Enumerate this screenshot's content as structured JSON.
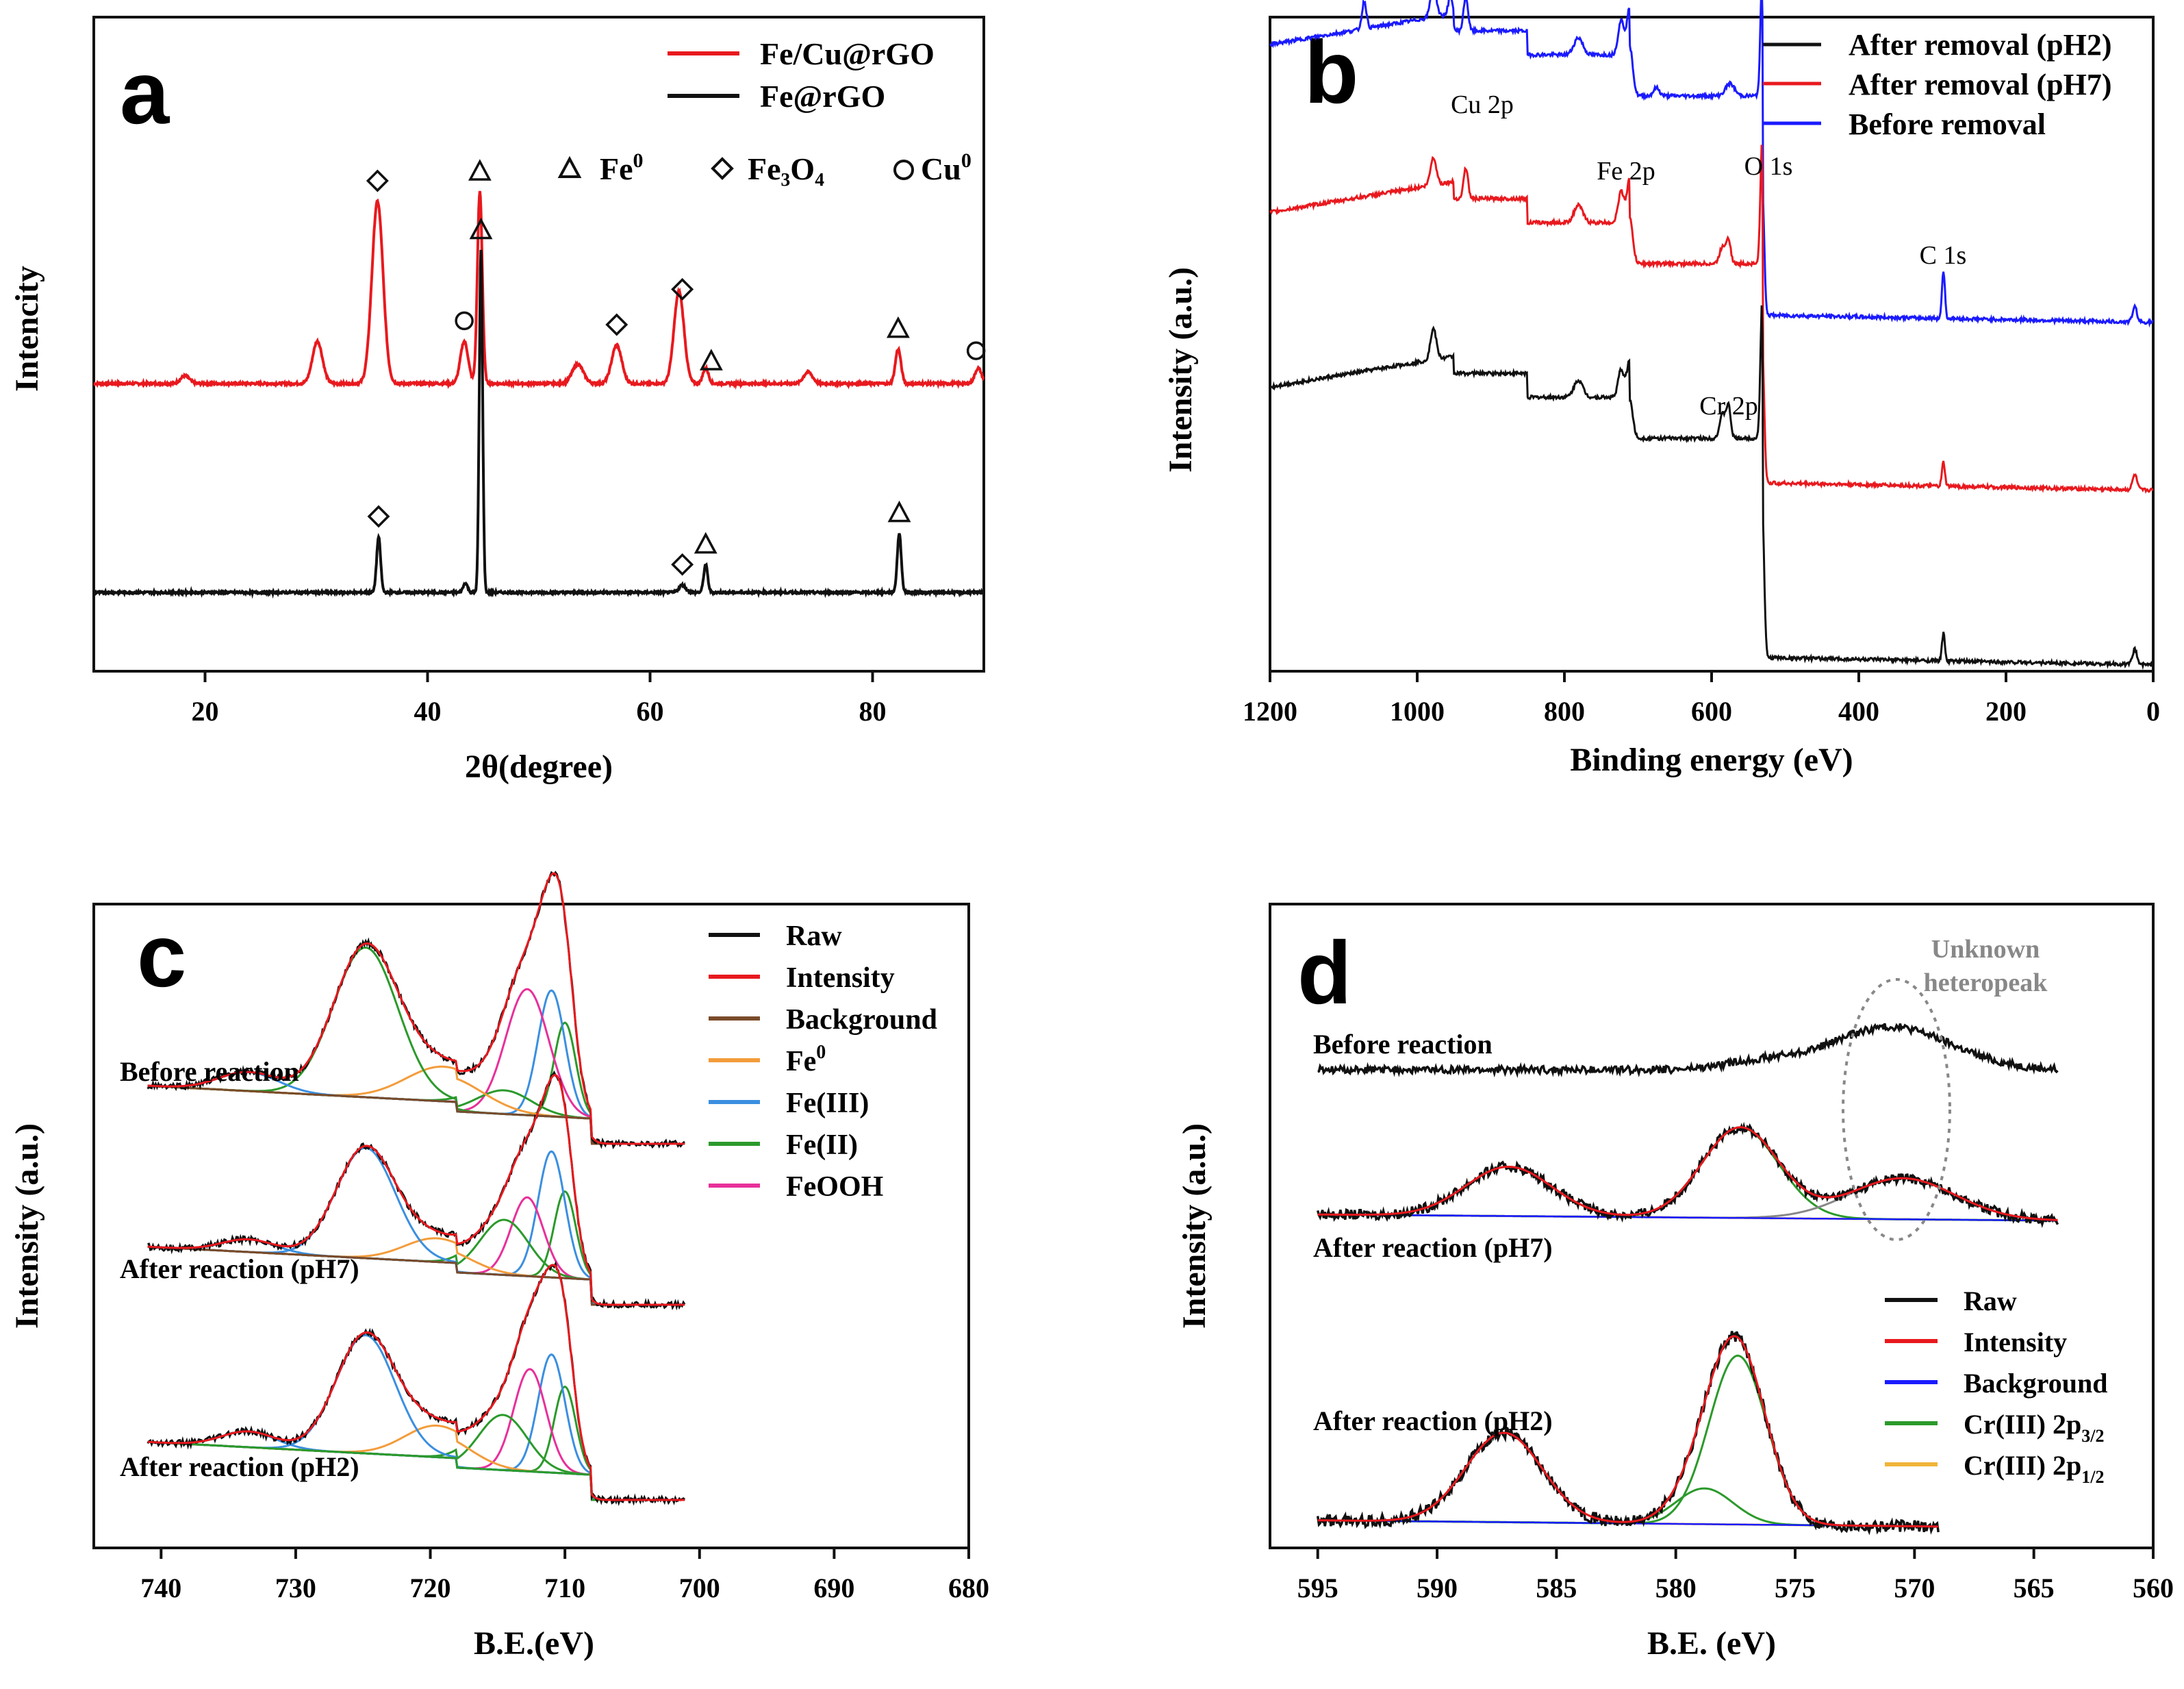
{
  "chart_data": [
    {
      "panel": "a",
      "type": "line",
      "xlabel": "2θ(degree)",
      "ylabel": "Intencity",
      "xlim": [
        10,
        90
      ],
      "xticks": [
        20,
        40,
        60,
        80
      ],
      "legend": {
        "placement": "top-right",
        "entries": [
          {
            "name": "Fe/Cu@rGO",
            "color": "#e8191e"
          },
          {
            "name": "Fe@rGO",
            "color": "#111111"
          }
        ]
      },
      "phase_legend": [
        {
          "marker": "triangle",
          "label": "Fe",
          "sup": "0"
        },
        {
          "marker": "diamond",
          "label": "Fe₃O₄",
          "sup": ""
        },
        {
          "marker": "circle",
          "label": "Cu",
          "sup": "0"
        }
      ],
      "series": [
        {
          "name": "Fe/Cu@rGO",
          "color": "#e8191e",
          "baseline": 0.62,
          "peaks": [
            [
              18.2,
              0.04,
              0.4
            ],
            [
              30.1,
              0.22,
              0.45
            ],
            [
              35.5,
              0.95,
              0.5
            ],
            [
              43.3,
              0.22,
              0.35
            ],
            [
              44.7,
              1.0,
              0.22
            ],
            [
              53.5,
              0.1,
              0.5
            ],
            [
              57.0,
              0.2,
              0.45
            ],
            [
              62.6,
              0.48,
              0.45
            ],
            [
              65.0,
              0.08,
              0.25
            ],
            [
              74.2,
              0.06,
              0.4
            ],
            [
              82.3,
              0.18,
              0.25
            ],
            [
              89.5,
              0.08,
              0.3
            ]
          ],
          "markers": [
            {
              "x": 35.5,
              "type": "diamond"
            },
            {
              "x": 44.7,
              "type": "triangle"
            },
            {
              "x": 43.3,
              "type": "circle"
            },
            {
              "x": 57.0,
              "type": "diamond"
            },
            {
              "x": 62.9,
              "type": "diamond"
            },
            {
              "x": 65.5,
              "type": "triangle"
            },
            {
              "x": 82.3,
              "type": "triangle"
            },
            {
              "x": 89.3,
              "type": "circle"
            }
          ]
        },
        {
          "name": "Fe@rGO",
          "color": "#111111",
          "baseline": 0.0,
          "peaks": [
            [
              35.6,
              0.3,
              0.18
            ],
            [
              43.4,
              0.05,
              0.2
            ],
            [
              44.8,
              1.85,
              0.15
            ],
            [
              62.9,
              0.04,
              0.3
            ],
            [
              65.0,
              0.15,
              0.18
            ],
            [
              82.4,
              0.32,
              0.18
            ]
          ],
          "markers": [
            {
              "x": 35.6,
              "type": "diamond"
            },
            {
              "x": 44.8,
              "type": "triangle"
            },
            {
              "x": 62.9,
              "type": "diamond"
            },
            {
              "x": 65.0,
              "type": "triangle"
            },
            {
              "x": 82.4,
              "type": "triangle"
            }
          ]
        }
      ]
    },
    {
      "panel": "b",
      "type": "line",
      "xlabel": "Binding energy (eV)",
      "ylabel": "Intensity (a.u.)",
      "xlim": [
        1200,
        0
      ],
      "xticks": [
        1200,
        1000,
        800,
        600,
        400,
        200,
        0
      ],
      "legend": {
        "placement": "top-right",
        "entries": [
          {
            "name": "After removal (pH2)",
            "color": "#111111"
          },
          {
            "name": "After removal (pH7)",
            "color": "#e8191e"
          },
          {
            "name": "Before removal",
            "color": "#1a1aff"
          }
        ]
      },
      "annotations": [
        {
          "text": "Cu 2p",
          "x": 935
        },
        {
          "text": "Fe 2p",
          "x": 715
        },
        {
          "text": "O 1s",
          "x": 528
        },
        {
          "text": "Cr 2p",
          "x": 580
        },
        {
          "text": "C 1s",
          "x": 282
        }
      ],
      "series": [
        {
          "name": "Before removal",
          "color": "#1a1aff",
          "offset": 2.0
        },
        {
          "name": "After removal (pH7)",
          "color": "#e8191e",
          "offset": 1.0
        },
        {
          "name": "After removal (pH2)",
          "color": "#111111",
          "offset": 0.0
        }
      ]
    },
    {
      "panel": "c",
      "type": "line",
      "xlabel": "B.E.(eV)",
      "ylabel": "Intensity (a.u.)",
      "xlim": [
        745,
        680
      ],
      "xticks": [
        740,
        730,
        720,
        710,
        700,
        690,
        680
      ],
      "legend": {
        "placement": "top-right",
        "entries": [
          {
            "name": "Raw",
            "color": "#111111"
          },
          {
            "name": "Intensity",
            "color": "#e8191e"
          },
          {
            "name": "Background",
            "color": "#7a4b2a"
          },
          {
            "name": "Fe",
            "sup": "0",
            "color": "#f39c3b"
          },
          {
            "name": "Fe(III)",
            "color": "#3b8fe0"
          },
          {
            "name": "Fe(II)",
            "color": "#2b9a2b"
          },
          {
            "name": "FeOOH",
            "color": "#e8309a"
          }
        ]
      },
      "spectra": [
        {
          "label": "Before reaction",
          "bg_color": "#7a4b2a",
          "components": [
            [
              710.0,
              0.6,
              0.8,
              "#2b9a2b"
            ],
            [
              711.0,
              0.8,
              1.0,
              "#3b8fe0"
            ],
            [
              712.8,
              0.8,
              1.6,
              "#e8309a"
            ],
            [
              714.5,
              0.15,
              2.0,
              "#2b9a2b"
            ],
            [
              719.0,
              0.22,
              2.8,
              "#f39c3b"
            ],
            [
              724.8,
              0.95,
              2.4,
              "#2b9a2b"
            ],
            [
              733.5,
              0.12,
              2.2,
              "#3b8fe0"
            ]
          ]
        },
        {
          "label": "After reaction (pH7)",
          "bg_color": "#7a4b2a",
          "components": [
            [
              710.0,
              0.55,
              0.8,
              "#2b9a2b"
            ],
            [
              711.0,
              0.8,
              1.0,
              "#3b8fe0"
            ],
            [
              712.8,
              0.5,
              1.2,
              "#e8309a"
            ],
            [
              714.5,
              0.35,
              1.8,
              "#2b9a2b"
            ],
            [
              719.5,
              0.15,
              2.4,
              "#f39c3b"
            ],
            [
              724.8,
              0.7,
              2.2,
              "#3b8fe0"
            ],
            [
              733.5,
              0.08,
              2.0,
              "#3b8fe0"
            ]
          ]
        },
        {
          "label": "After reaction (pH2)",
          "bg_color": "#2b9a2b",
          "components": [
            [
              710.0,
              0.55,
              0.8,
              "#2b9a2b"
            ],
            [
              711.0,
              0.75,
              1.0,
              "#3b8fe0"
            ],
            [
              712.6,
              0.65,
              1.2,
              "#e8309a"
            ],
            [
              714.6,
              0.35,
              1.8,
              "#2b9a2b"
            ],
            [
              719.5,
              0.2,
              2.4,
              "#f39c3b"
            ],
            [
              724.8,
              0.75,
              2.2,
              "#3b8fe0"
            ],
            [
              733.5,
              0.1,
              2.0,
              "#3b8fe0"
            ]
          ]
        }
      ]
    },
    {
      "panel": "d",
      "type": "line",
      "xlabel": "B.E. (eV)",
      "ylabel": "Intensity (a.u.)",
      "xlim": [
        597,
        560
      ],
      "xticks": [
        595,
        590,
        585,
        580,
        575,
        570,
        565,
        560
      ],
      "legend": {
        "placement": "bottom-right",
        "entries": [
          {
            "name": "Raw",
            "color": "#111111"
          },
          {
            "name": "Intensity",
            "color": "#e8191e"
          },
          {
            "name": "Background",
            "color": "#1a1aff"
          },
          {
            "name": "Cr(III) 2p",
            "sub": "3/2",
            "color": "#2b9a2b"
          },
          {
            "name": "Cr(III) 2p",
            "sub": "1/2",
            "color": "#f0b43a"
          }
        ]
      },
      "annotation": {
        "text_line1": "Unknown",
        "text_line2": "heteropeak",
        "x": 570.8
      },
      "spectra": [
        {
          "label": "Before reaction",
          "components": [
            [
              571.0,
              0.35,
              2.5,
              "#888888"
            ],
            [
              576.5,
              0.06,
              1.5,
              "#888888"
            ]
          ]
        },
        {
          "label": "After reaction (pH7)",
          "components": [
            [
              587.0,
              0.3,
              1.8,
              "#f0b43a"
            ],
            [
              577.3,
              0.55,
              1.6,
              "#2b9a2b"
            ],
            [
              570.5,
              0.25,
              2.2,
              "#888888"
            ]
          ]
        },
        {
          "label": "After reaction (pH2)",
          "components": [
            [
              587.2,
              0.45,
              1.6,
              "#f0b43a"
            ],
            [
              577.4,
              0.85,
              1.2,
              "#2b9a2b"
            ],
            [
              578.8,
              0.18,
              1.2,
              "#2b9a2b"
            ]
          ]
        }
      ]
    }
  ]
}
